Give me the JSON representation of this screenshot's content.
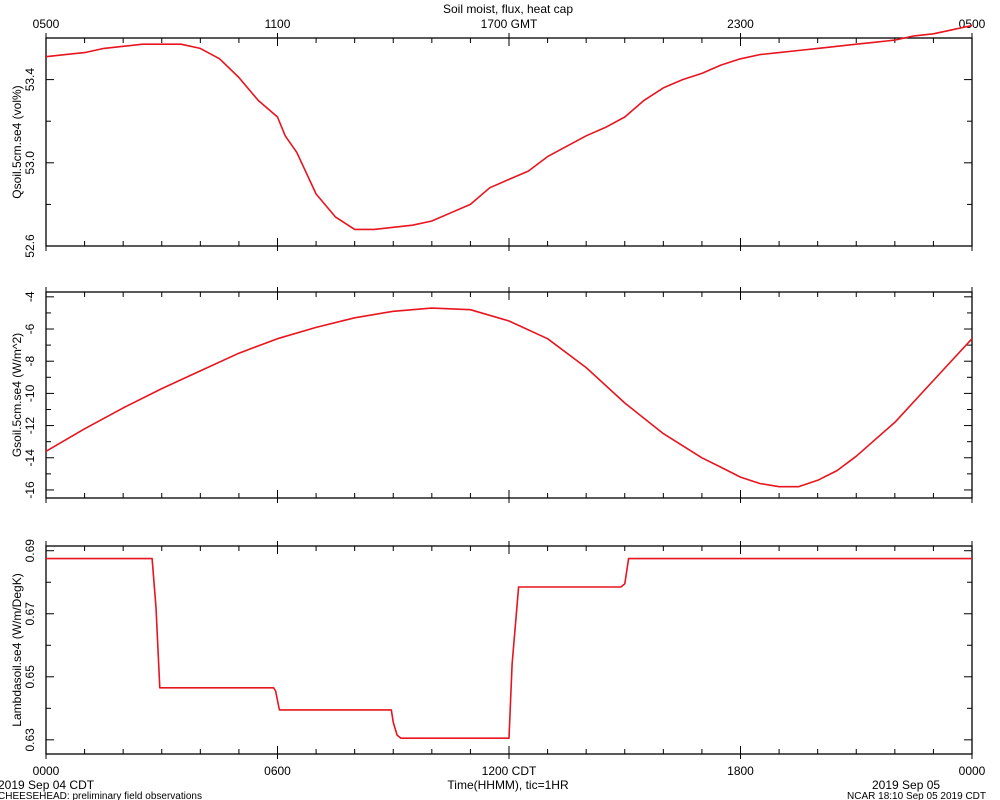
{
  "chart_data": {
    "type": "line",
    "title": "Soil moist, flux, heat cap",
    "top_axis": {
      "label_suffix": "GMT",
      "ticks": [
        {
          "h": 0,
          "label": "0500"
        },
        {
          "h": 6,
          "label": "1100"
        },
        {
          "h": 12,
          "label": "1700 GMT"
        },
        {
          "h": 18,
          "label": "2300"
        },
        {
          "h": 24,
          "label": "0500"
        }
      ]
    },
    "bottom_axis": {
      "xlabel": "Time(HHMM), tic=1HR",
      "ticks": [
        {
          "h": 0,
          "label": "0000"
        },
        {
          "h": 6,
          "label": "0600"
        },
        {
          "h": 12,
          "label": "1200 CDT"
        },
        {
          "h": 18,
          "label": "1800"
        },
        {
          "h": 24,
          "label": "0000"
        }
      ],
      "xlim": [
        0,
        24
      ]
    },
    "date_left": "2019 Sep 04 CDT",
    "date_right": "2019 Sep 05",
    "footer_left": "CHEESEHEAD: preliminary field observations",
    "footer_right": "NCAR 18:10 Sep 05 2019 CDT",
    "line_color": "#e8141e",
    "panels": [
      {
        "ylabel": "Qsoil.5cm.se4 (vol%)",
        "ylim": [
          52.6,
          53.6
        ],
        "yticks": [
          52.6,
          53.0,
          53.4
        ],
        "ytick_labels": [
          "52.6",
          "53.0",
          "53.4"
        ],
        "series": [
          {
            "x": [
              0,
              0.5,
              1,
              1.5,
              2,
              2.5,
              3,
              3.5,
              4,
              4.5,
              5,
              5.5,
              6,
              6.2,
              6.5,
              7,
              7.5,
              8,
              8.5,
              9,
              9.5,
              10,
              10.5,
              11,
              11.5,
              12,
              12.5,
              13,
              13.5,
              14,
              14.5,
              15,
              15.5,
              16,
              16.5,
              17,
              17.5,
              18,
              18.5,
              19,
              19.5,
              20,
              20.5,
              21,
              21.5,
              22,
              22.5,
              23,
              23.5,
              24
            ],
            "y": [
              53.51,
              53.52,
              53.53,
              53.55,
              53.56,
              53.57,
              53.57,
              53.57,
              53.55,
              53.5,
              53.41,
              53.3,
              53.22,
              53.13,
              53.05,
              52.85,
              52.74,
              52.68,
              52.68,
              52.69,
              52.7,
              52.72,
              52.76,
              52.8,
              52.88,
              52.92,
              52.96,
              53.03,
              53.08,
              53.13,
              53.17,
              53.22,
              53.3,
              53.36,
              53.4,
              53.43,
              53.47,
              53.5,
              53.52,
              53.53,
              53.54,
              53.55,
              53.56,
              53.57,
              53.58,
              53.59,
              53.61,
              53.62,
              53.64,
              53.66
            ]
          }
        ]
      },
      {
        "ylabel": "Gsoil.5cm.se4 (W/m^2)",
        "ylim": [
          -16.5,
          -3.7
        ],
        "yticks": [
          -16,
          -14,
          -12,
          -10,
          -8,
          -6,
          -4
        ],
        "ytick_labels": [
          "-16",
          "-14",
          "-12",
          "-10",
          "-8",
          "-6",
          "-4"
        ],
        "series": [
          {
            "x": [
              0,
              1,
              2,
              3,
              4,
              5,
              6,
              7,
              8,
              9,
              10,
              11,
              12,
              13,
              14,
              15,
              16,
              17,
              17.5,
              18,
              18.5,
              19,
              19.5,
              20,
              20.5,
              21,
              22,
              23,
              24
            ],
            "y": [
              -13.6,
              -12.2,
              -10.9,
              -9.7,
              -8.6,
              -7.5,
              -6.6,
              -5.9,
              -5.3,
              -4.9,
              -4.7,
              -4.8,
              -5.5,
              -6.6,
              -8.4,
              -10.6,
              -12.5,
              -14.0,
              -14.6,
              -15.2,
              -15.6,
              -15.8,
              -15.8,
              -15.4,
              -14.8,
              -13.9,
              -11.8,
              -9.2,
              -6.6
            ]
          }
        ]
      },
      {
        "ylabel": "Lambdasoil.se4 (W/m/DegK)",
        "ylim": [
          0.6255,
          0.6915
        ],
        "yticks": [
          0.63,
          0.65,
          0.67,
          0.69
        ],
        "ytick_labels": [
          "0.63",
          "0.65",
          "0.67",
          "0.69"
        ],
        "series": [
          {
            "x": [
              0,
              2.75,
              2.85,
              2.95,
              5.9,
              5.95,
              6.05,
              8.95,
              9.0,
              9.1,
              9.2,
              12.0,
              12.08,
              12.25,
              14.9,
              15.0,
              15.1,
              24
            ],
            "y": [
              0.6875,
              0.6875,
              0.672,
              0.6465,
              0.6465,
              0.6455,
              0.6395,
              0.6395,
              0.6355,
              0.6315,
              0.6305,
              0.6305,
              0.654,
              0.6785,
              0.6785,
              0.6795,
              0.6875,
              0.6875
            ]
          }
        ]
      }
    ]
  }
}
